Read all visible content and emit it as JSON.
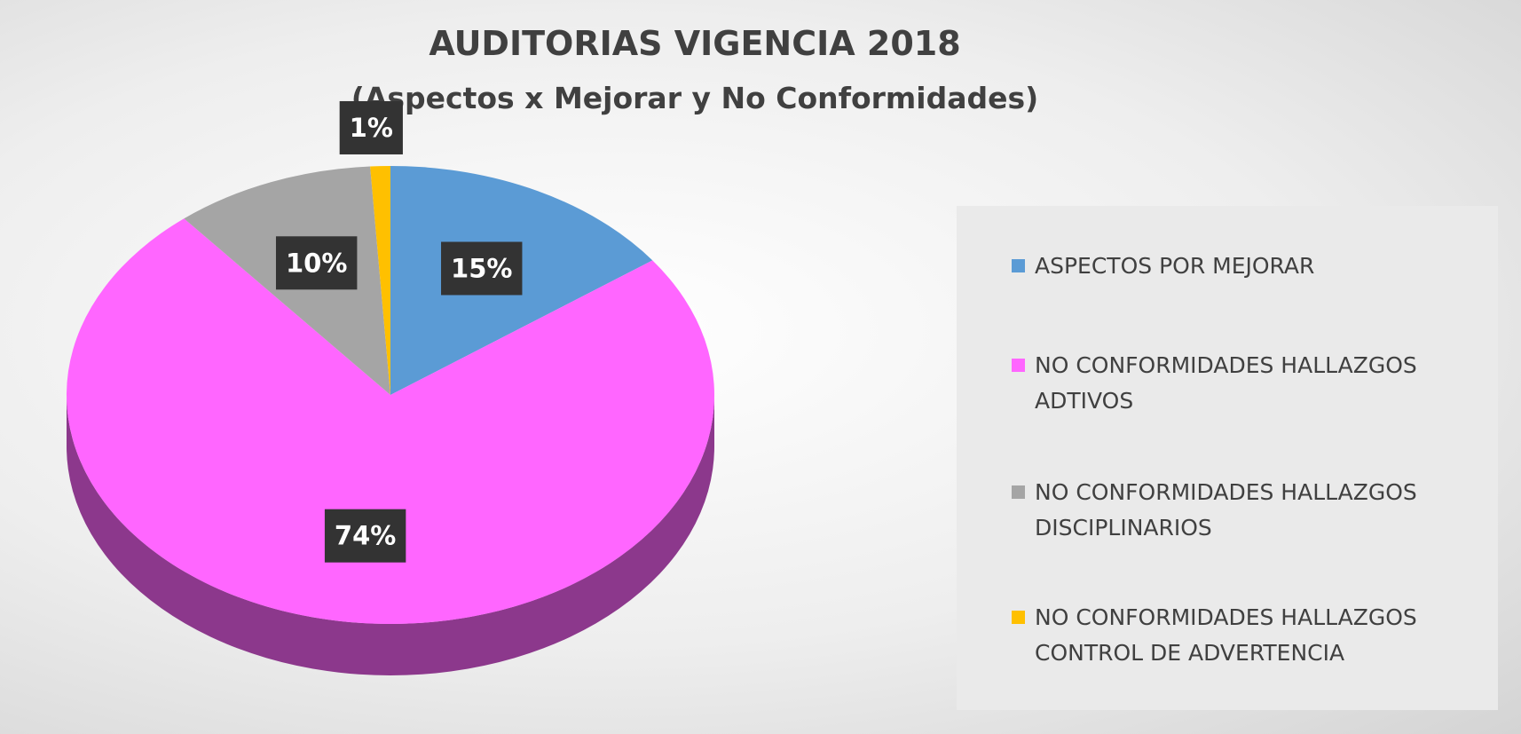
{
  "chart_data": {
    "type": "pie",
    "title": "AUDITORIAS VIGENCIA 2018",
    "subtitle": "(Aspectos x Mejorar y No Conformidades)",
    "categories": [
      "ASPECTOS POR MEJORAR",
      "NO CONFORMIDADES HALLAZGOS ADTIVOS",
      "NO CONFORMIDADES HALLAZGOS DISCIPLINARIOS",
      "NO CONFORMIDADES HALLAZGOS CONTROL DE ADVERTENCIA"
    ],
    "values": [
      15,
      74,
      10,
      1
    ],
    "value_labels": [
      "15%",
      "74%",
      "10%",
      "1%"
    ],
    "colors": [
      "#5b9bd5",
      "#ff66ff",
      "#a5a5a5",
      "#ffc000"
    ],
    "legend": "right"
  }
}
